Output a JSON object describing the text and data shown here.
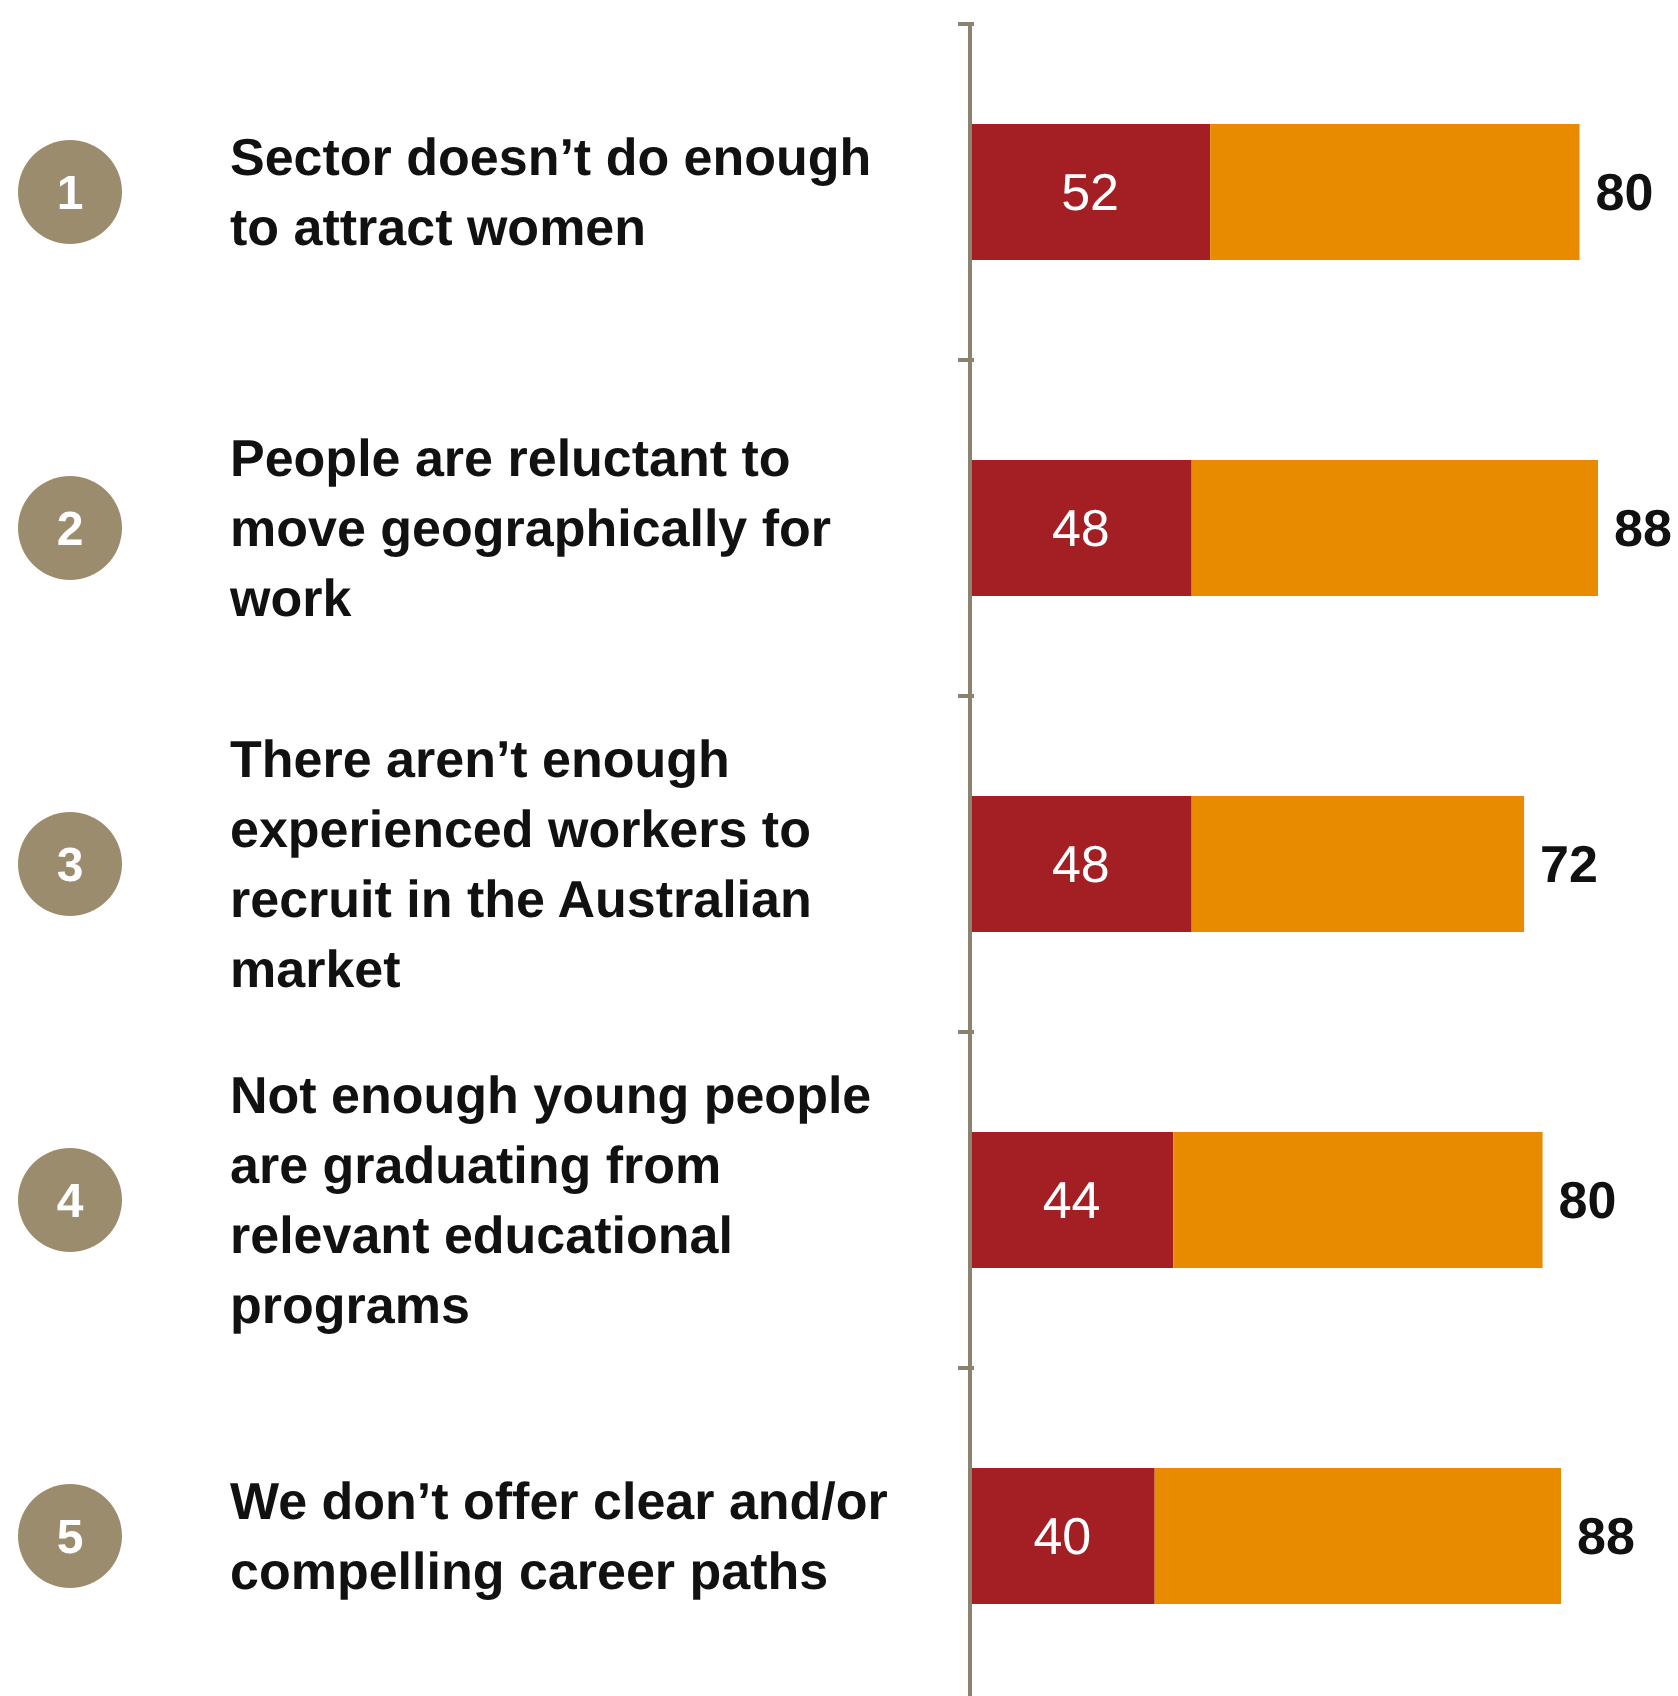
{
  "chart_data": {
    "type": "bar",
    "orientation": "horizontal",
    "stacked": true,
    "data_labels": true,
    "categories": [
      "Sector doesn’t do enough to attract women",
      "People are reluctant to move geographically for work",
      "There aren’t enough experienced workers to recruit in the Australian market",
      "Not enough young people are graduating from relevant educational programs",
      "We don’t offer clear and/or compelling career paths"
    ],
    "annotations": [
      "1",
      "2",
      "3",
      "4",
      "5"
    ],
    "series": [
      {
        "color": "#a31f24",
        "values": [
          52,
          48,
          48,
          44,
          40
        ]
      },
      {
        "color": "#e98b00",
        "values": [
          80,
          88,
          72,
          80,
          88
        ]
      }
    ]
  }
}
